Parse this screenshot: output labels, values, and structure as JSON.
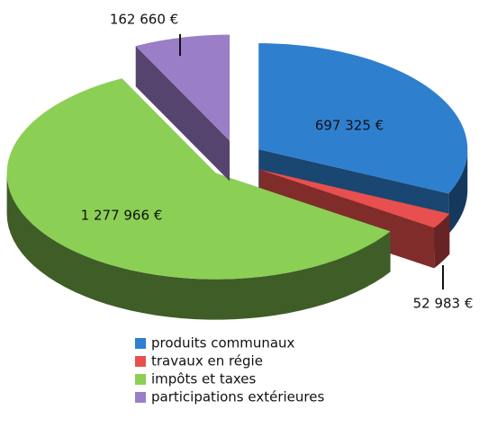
{
  "chart_data": {
    "type": "pie",
    "categories": [
      "produits communaux",
      "travaux en régie",
      "impôts et taxes",
      "participations extérieures"
    ],
    "values": [
      697325,
      52983,
      1277966,
      162660
    ],
    "value_labels": [
      "697 325 €",
      "52 983 €",
      "1 277 966 €",
      "162 660 €"
    ],
    "colors": [
      "#2f7fcf",
      "#e8504f",
      "#8bcf55",
      "#9a7ec8"
    ],
    "legend": "bottom"
  }
}
